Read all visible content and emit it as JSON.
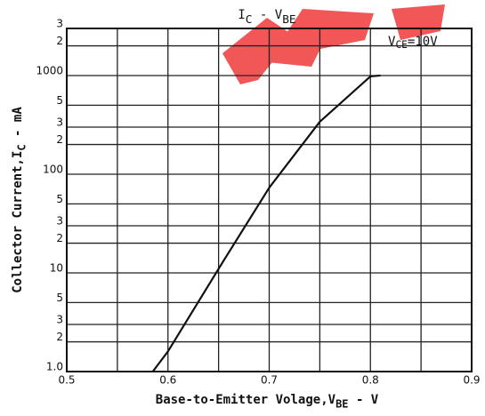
{
  "chart_data": {
    "type": "line",
    "title": [
      "I",
      "C",
      " - V",
      "BE"
    ],
    "xlabel": [
      "Base-to-Emitter Volage,V",
      "BE",
      " - V"
    ],
    "ylabel": [
      "Collector Current,I",
      "C",
      " - mA"
    ],
    "annotation": [
      "V",
      "CE",
      "=10V"
    ],
    "xlim": [
      0.5,
      0.9
    ],
    "xticks": [
      0.5,
      0.6,
      0.7,
      0.8,
      0.9
    ],
    "xminor": [
      0.55,
      0.65,
      0.75,
      0.85
    ],
    "ylim": [
      1,
      3000
    ],
    "log_y": true,
    "grid": true,
    "yticks": [
      {
        "value": 1,
        "label": "1.0"
      },
      {
        "value": 2,
        "label": "2"
      },
      {
        "value": 3,
        "label": "3"
      },
      {
        "value": 5,
        "label": "5"
      },
      10,
      {
        "value": 20,
        "label": "2"
      },
      {
        "value": 30,
        "label": "3"
      },
      {
        "value": 50,
        "label": "5"
      },
      100,
      {
        "value": 200,
        "label": "2"
      },
      {
        "value": 300,
        "label": "3"
      },
      {
        "value": 500,
        "label": "5"
      },
      1000,
      {
        "value": 2000,
        "label": "2"
      },
      {
        "value": 3000,
        "label": "3"
      }
    ],
    "series": [
      {
        "color": "#111111",
        "x": [
          0.585,
          0.6,
          0.65,
          0.7,
          0.75,
          0.8,
          0.81
        ],
        "values": [
          1,
          1.6,
          11,
          73,
          340,
          980,
          1000
        ]
      }
    ]
  }
}
